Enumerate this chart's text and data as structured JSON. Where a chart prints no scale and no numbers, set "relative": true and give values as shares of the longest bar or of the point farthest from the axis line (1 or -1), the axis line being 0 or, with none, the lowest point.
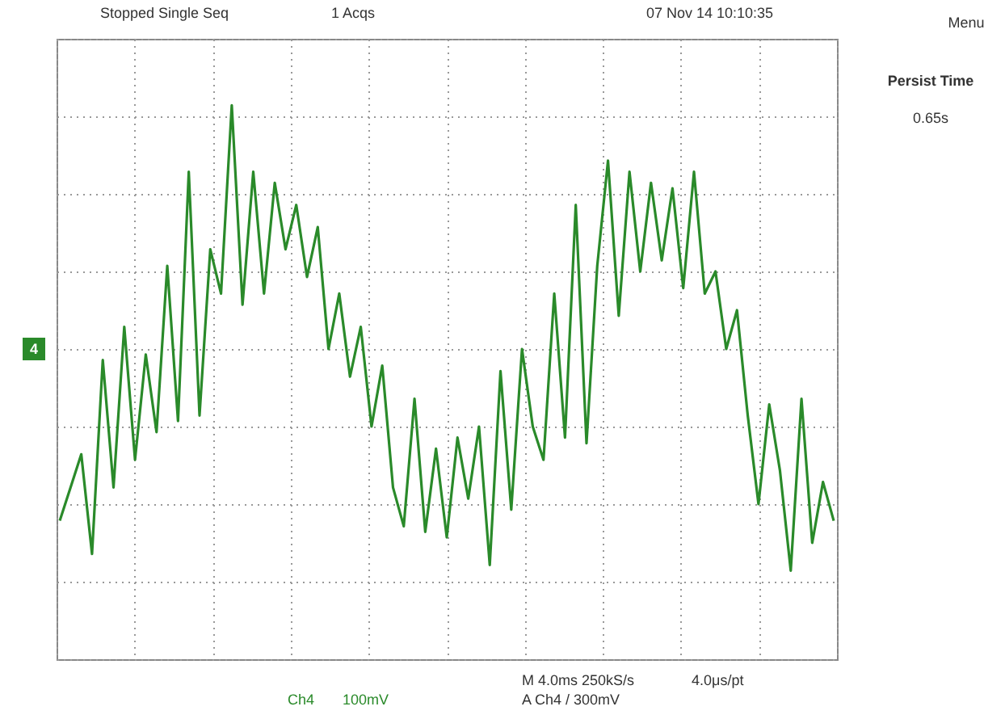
{
  "chart_data": {
    "type": "line",
    "relative": true,
    "grid": true,
    "marker": "none",
    "line_style": "solid",
    "annotations": [
      "Stopped Single Seq",
      "1 Acqs",
      "07 Nov 14 10:10:35",
      "Menu",
      "Persist Time",
      "0.65s",
      "4",
      "Ch4",
      "100mV",
      "M 4.0ms 250kS/s",
      "4.0μs/pt",
      "A Ch4 / 300mV"
    ],
    "categories": [
      null,
      null,
      null,
      null,
      null,
      null,
      null,
      null,
      null,
      null,
      null,
      null,
      null,
      null,
      null,
      null,
      null,
      null,
      null,
      null,
      null,
      null,
      null,
      null,
      null,
      null,
      null,
      null,
      null,
      null,
      null,
      null,
      null,
      null,
      null,
      null,
      null,
      null,
      null,
      null,
      null,
      null,
      null,
      null,
      null,
      null,
      null,
      null,
      null,
      null,
      null,
      null,
      null,
      null,
      null,
      null,
      null,
      null,
      null,
      null,
      null,
      null,
      null,
      null,
      null,
      null,
      null,
      null,
      null,
      null,
      null,
      null,
      null
    ],
    "series": [
      {
        "color": "#2a8a2a",
        "values": [
          0.25,
          0.31,
          0.37,
          0.19,
          0.54,
          0.31,
          0.6,
          0.36,
          0.55,
          0.41,
          0.71,
          0.43,
          0.88,
          0.44,
          0.74,
          0.66,
          1.0,
          0.64,
          0.88,
          0.66,
          0.86,
          0.74,
          0.82,
          0.69,
          0.78,
          0.56,
          0.66,
          0.51,
          0.6,
          0.42,
          0.53,
          0.31,
          0.24,
          0.47,
          0.23,
          0.38,
          0.22,
          0.4,
          0.29,
          0.42,
          0.17,
          0.52,
          0.27,
          0.56,
          0.42,
          0.36,
          0.66,
          0.4,
          0.82,
          0.39,
          0.71,
          0.9,
          0.62,
          0.88,
          0.7,
          0.86,
          0.72,
          0.85,
          0.67,
          0.88,
          0.66,
          0.7,
          0.56,
          0.63,
          0.44,
          0.28,
          0.46,
          0.34,
          0.16,
          0.47,
          0.21,
          0.32,
          0.25
        ]
      }
    ]
  }
}
